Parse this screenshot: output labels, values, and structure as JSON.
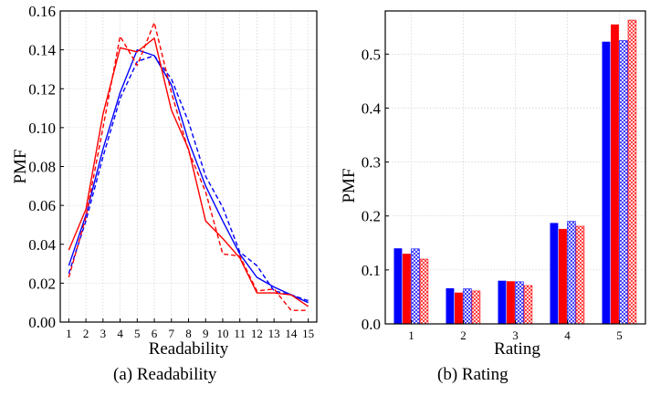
{
  "chart_data": [
    {
      "type": "line",
      "caption": "(a)  Readability",
      "xlabel": "Readability",
      "ylabel": "PMF",
      "xlim": [
        0.5,
        15.5
      ],
      "ylim": [
        0,
        0.16
      ],
      "x_ticks": [
        1,
        2,
        3,
        4,
        5,
        6,
        7,
        8,
        9,
        10,
        11,
        12,
        13,
        14,
        15
      ],
      "y_ticks": [
        "0.00",
        "0.02",
        "0.04",
        "0.06",
        "0.08",
        "0.10",
        "0.12",
        "0.14",
        "0.16"
      ],
      "grid": true,
      "x": [
        1,
        2,
        3,
        4,
        5,
        6,
        7,
        8,
        9,
        10,
        11,
        12,
        13,
        14,
        15
      ],
      "series": [
        {
          "color": "#0000ff",
          "style": "solid",
          "values": [
            0.029,
            0.055,
            0.089,
            0.118,
            0.14,
            0.137,
            0.122,
            0.093,
            0.07,
            0.052,
            0.035,
            0.023,
            0.018,
            0.014,
            0.01
          ]
        },
        {
          "color": "#0000ff",
          "style": "dashed",
          "values": [
            0.025,
            0.052,
            0.085,
            0.115,
            0.134,
            0.137,
            0.125,
            0.103,
            0.075,
            0.059,
            0.036,
            0.029,
            0.016,
            0.014,
            0.011
          ]
        },
        {
          "color": "#ff0000",
          "style": "solid",
          "values": [
            0.037,
            0.058,
            0.107,
            0.141,
            0.139,
            0.146,
            0.109,
            0.089,
            0.052,
            0.043,
            0.033,
            0.015,
            0.015,
            0.014,
            0.008
          ]
        },
        {
          "color": "#ff0000",
          "style": "dashed",
          "values": [
            0.023,
            0.054,
            0.1,
            0.147,
            0.132,
            0.154,
            0.118,
            0.088,
            0.067,
            0.035,
            0.034,
            0.016,
            0.017,
            0.006,
            0.006
          ]
        }
      ]
    },
    {
      "type": "bar",
      "caption": "(b)  Rating",
      "xlabel": "Rating",
      "ylabel": "PMF",
      "ylim": [
        0,
        0.58
      ],
      "y_ticks": [
        "0.0",
        "0.1",
        "0.2",
        "0.3",
        "0.4",
        "0.5"
      ],
      "grid": true,
      "categories": [
        "1",
        "2",
        "3",
        "4",
        "5"
      ],
      "series": [
        {
          "color": "#0000ff",
          "fill": "solid",
          "values": [
            0.14,
            0.066,
            0.08,
            0.187,
            0.523
          ]
        },
        {
          "color": "#ff0000",
          "fill": "solid",
          "values": [
            0.13,
            0.058,
            0.079,
            0.176,
            0.555
          ]
        },
        {
          "color": "#0000ff",
          "fill": "hatched",
          "values": [
            0.139,
            0.065,
            0.078,
            0.19,
            0.525
          ]
        },
        {
          "color": "#ff0000",
          "fill": "hatched",
          "values": [
            0.12,
            0.061,
            0.071,
            0.181,
            0.563
          ]
        }
      ]
    }
  ]
}
